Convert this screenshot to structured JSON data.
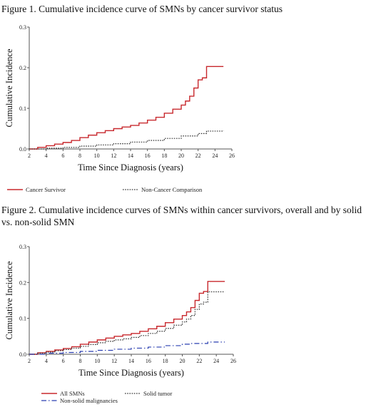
{
  "captions": {
    "figure1": "Figure 1. Cumulative incidence curve of SMNs by cancer survivor status",
    "figure2": "Figure 2. Cumulative incidence curves of SMNs within cancer survivors, overall and by solid vs. non-solid SMN"
  },
  "chart_data": [
    {
      "type": "line",
      "title": "",
      "xlabel": "Time Since Diagnosis (years)",
      "ylabel": "Cumulative Incidence",
      "xlim": [
        2,
        26
      ],
      "ylim": [
        0,
        0.3
      ],
      "xticks": [
        "2",
        "4",
        "6",
        "8",
        "10",
        "12",
        "14",
        "16",
        "18",
        "20",
        "22",
        "24",
        "26"
      ],
      "yticks": [
        "0.0",
        "0.1",
        "0.2",
        "0.3"
      ],
      "legend_position": "bottom",
      "series": [
        {
          "name": "Cancer Survivor",
          "color": "#c8282d",
          "style": "solid",
          "x": [
            2,
            3,
            4,
            5,
            6,
            7,
            8,
            9,
            10,
            11,
            12,
            13,
            14,
            15,
            16,
            17,
            18,
            19,
            20,
            20.5,
            21,
            21.5,
            22,
            22.5,
            23,
            25
          ],
          "y": [
            0.0,
            0.004,
            0.008,
            0.012,
            0.016,
            0.021,
            0.028,
            0.034,
            0.04,
            0.045,
            0.05,
            0.054,
            0.058,
            0.064,
            0.071,
            0.078,
            0.088,
            0.098,
            0.108,
            0.118,
            0.13,
            0.15,
            0.17,
            0.175,
            0.203,
            0.203
          ]
        },
        {
          "name": "Non-Cancer Comparison",
          "color": "#333333",
          "style": "dotted",
          "x": [
            2,
            4,
            6,
            8,
            10,
            12,
            14,
            16,
            18,
            20,
            22,
            23,
            25
          ],
          "y": [
            0.0,
            0.002,
            0.004,
            0.007,
            0.01,
            0.013,
            0.017,
            0.021,
            0.026,
            0.032,
            0.038,
            0.044,
            0.045
          ]
        }
      ]
    },
    {
      "type": "line",
      "title": "",
      "xlabel": "Time Since Diagnosis (years)",
      "ylabel": "Cumulative Incidence",
      "xlim": [
        2,
        26
      ],
      "ylim": [
        0,
        0.3
      ],
      "xticks": [
        "2",
        "4",
        "6",
        "8",
        "10",
        "12",
        "14",
        "16",
        "18",
        "20",
        "22",
        "24",
        "26"
      ],
      "yticks": [
        "0.0",
        "0.1",
        "0.2",
        "0.3"
      ],
      "legend_position": "bottom",
      "series": [
        {
          "name": "All SMNs",
          "color": "#c8282d",
          "style": "solid",
          "x": [
            2,
            3,
            4,
            5,
            6,
            7,
            8,
            9,
            10,
            11,
            12,
            13,
            14,
            15,
            16,
            17,
            18,
            19,
            20,
            20.5,
            21,
            21.5,
            22,
            22.5,
            23,
            25
          ],
          "y": [
            0.0,
            0.004,
            0.008,
            0.012,
            0.016,
            0.021,
            0.028,
            0.034,
            0.04,
            0.045,
            0.05,
            0.054,
            0.058,
            0.064,
            0.071,
            0.078,
            0.088,
            0.098,
            0.108,
            0.118,
            0.13,
            0.15,
            0.17,
            0.175,
            0.203,
            0.203
          ]
        },
        {
          "name": "Solid tumor",
          "color": "#333333",
          "style": "dotted",
          "x": [
            2,
            3,
            4,
            5,
            6,
            7,
            8,
            9,
            10,
            11,
            12,
            13,
            14,
            15,
            16,
            17,
            18,
            19,
            20,
            20.5,
            21,
            21.5,
            22,
            22.5,
            23,
            25
          ],
          "y": [
            0.0,
            0.003,
            0.006,
            0.01,
            0.013,
            0.017,
            0.022,
            0.027,
            0.032,
            0.036,
            0.04,
            0.043,
            0.047,
            0.052,
            0.058,
            0.064,
            0.072,
            0.081,
            0.09,
            0.098,
            0.108,
            0.125,
            0.14,
            0.145,
            0.174,
            0.174
          ]
        },
        {
          "name": "Non-solid malignancies",
          "color": "#2a3fb0",
          "style": "dashdot",
          "x": [
            2,
            4,
            6,
            8,
            10,
            12,
            14,
            16,
            18,
            20,
            21,
            23,
            25
          ],
          "y": [
            0.0,
            0.003,
            0.005,
            0.008,
            0.011,
            0.014,
            0.017,
            0.02,
            0.024,
            0.028,
            0.03,
            0.034,
            0.034
          ]
        }
      ]
    }
  ]
}
